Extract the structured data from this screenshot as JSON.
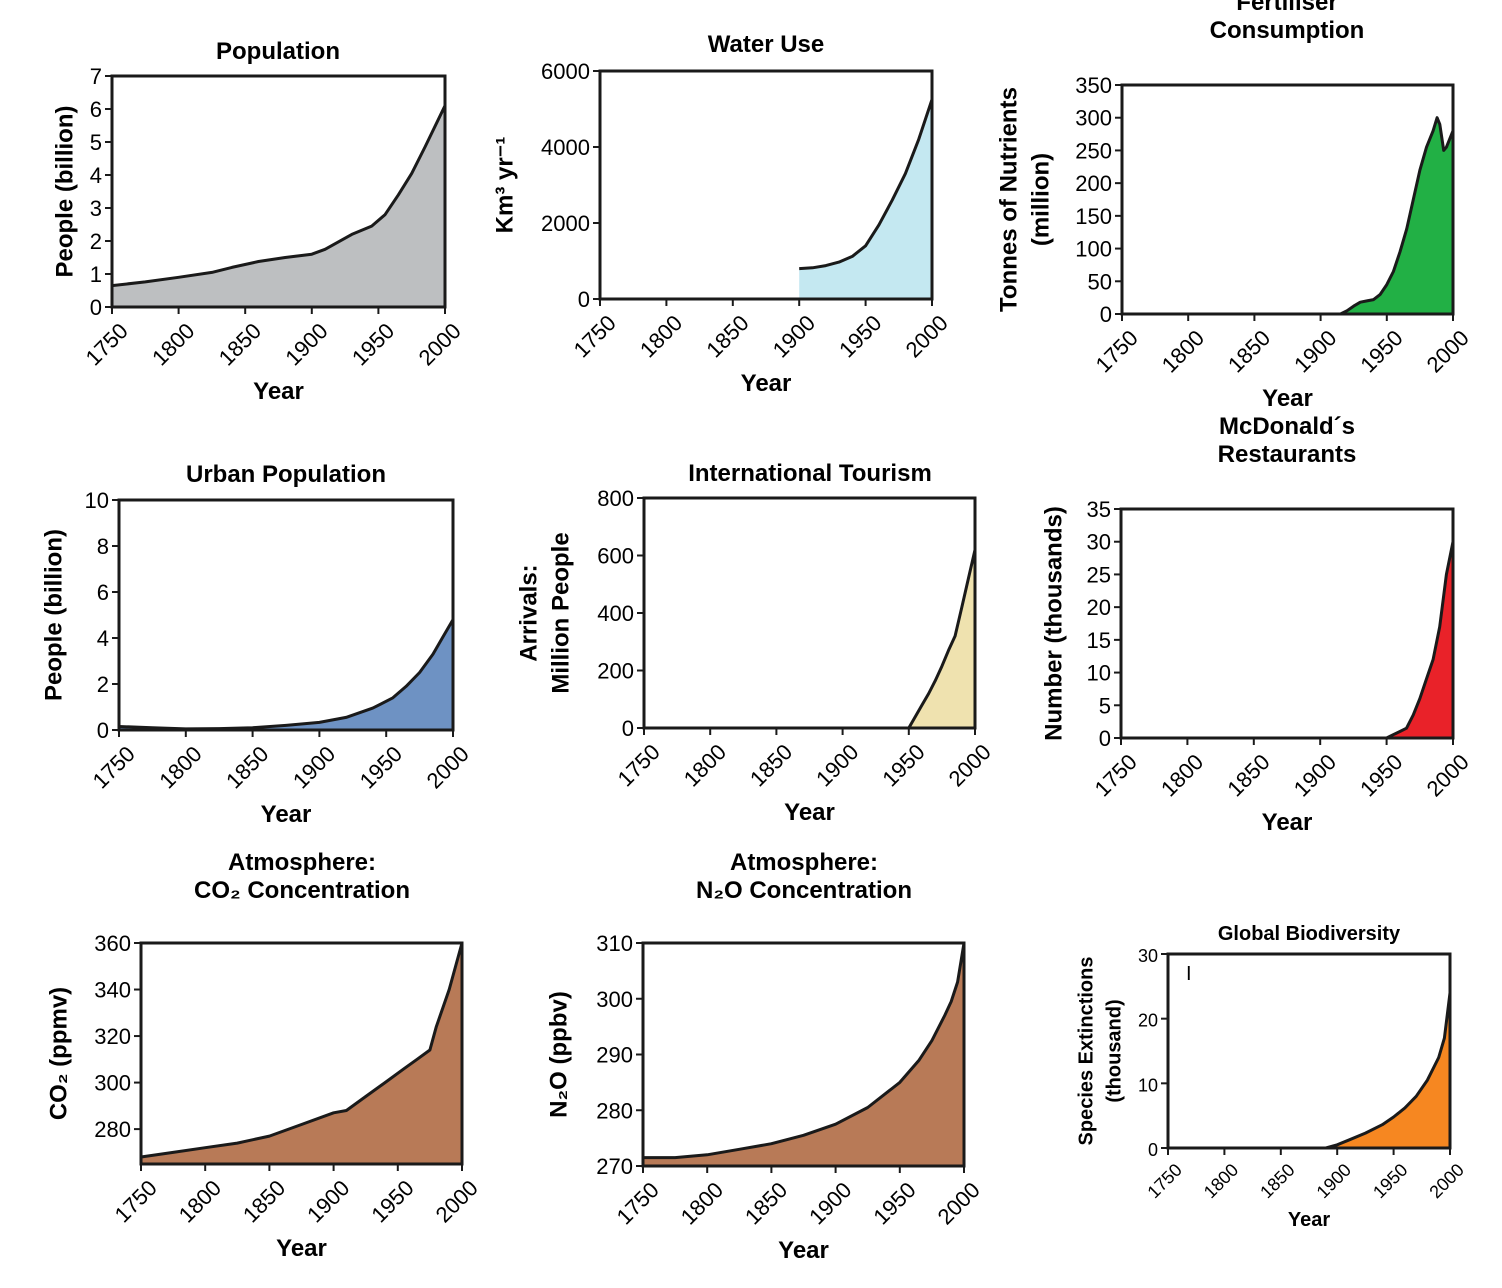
{
  "chart_data": [
    {
      "type": "area",
      "title": [
        "Population"
      ],
      "xlabel": "Year",
      "ylabel": [
        "People (billion)"
      ],
      "xlim": [
        1750,
        2000
      ],
      "ylim": [
        0,
        7
      ],
      "xticks": [
        1750,
        1800,
        1850,
        1900,
        1950,
        2000
      ],
      "yticks": [
        0,
        1,
        2,
        3,
        4,
        5,
        6,
        7
      ],
      "fill_color": "#bdbfc1",
      "series": [
        {
          "x": [
            1750,
            1775,
            1800,
            1825,
            1840,
            1860,
            1880,
            1900,
            1910,
            1930,
            1945,
            1955,
            1965,
            1975,
            1985,
            2000
          ],
          "y": [
            0.65,
            0.76,
            0.9,
            1.05,
            1.2,
            1.38,
            1.5,
            1.6,
            1.75,
            2.2,
            2.45,
            2.8,
            3.4,
            4.05,
            4.85,
            6.1
          ]
        }
      ]
    },
    {
      "type": "area",
      "title": [
        "Water Use"
      ],
      "xlabel": "Year",
      "ylabel": [
        "Km³ yr⁻¹"
      ],
      "xlim": [
        1750,
        2000
      ],
      "ylim": [
        0,
        6000
      ],
      "xticks": [
        1750,
        1800,
        1850,
        1900,
        1950,
        2000
      ],
      "yticks": [
        0,
        2000,
        4000,
        6000
      ],
      "fill_color": "#c4e8f1",
      "series": [
        {
          "x": [
            1900,
            1910,
            1920,
            1930,
            1940,
            1950,
            1960,
            1970,
            1980,
            1990,
            2000
          ],
          "y": [
            800,
            820,
            880,
            970,
            1120,
            1400,
            1950,
            2600,
            3300,
            4200,
            5250
          ]
        }
      ]
    },
    {
      "type": "area",
      "title": [
        "Fertiliser",
        "Consumption"
      ],
      "xlabel": "Year",
      "ylabel": [
        "Tonnes of Nutrients",
        "(million)"
      ],
      "xlim": [
        1750,
        2000
      ],
      "ylim": [
        0,
        350
      ],
      "xticks": [
        1750,
        1800,
        1850,
        1900,
        1950,
        2000
      ],
      "yticks": [
        0,
        50,
        100,
        150,
        200,
        250,
        300,
        350
      ],
      "fill_color": "#22b045",
      "series": [
        {
          "x": [
            1915,
            1920,
            1925,
            1930,
            1935,
            1940,
            1945,
            1950,
            1955,
            1960,
            1965,
            1970,
            1975,
            1980,
            1985,
            1988,
            1990,
            1993,
            1995,
            2000
          ],
          "y": [
            0,
            5,
            12,
            18,
            20,
            22,
            30,
            45,
            65,
            95,
            130,
            175,
            220,
            255,
            280,
            300,
            290,
            250,
            255,
            280
          ]
        }
      ]
    },
    {
      "type": "area",
      "title": [
        "Urban Population"
      ],
      "xlabel": "Year",
      "ylabel": [
        "People (billion)"
      ],
      "xlim": [
        1750,
        2000
      ],
      "ylim": [
        0,
        10
      ],
      "xticks": [
        1750,
        1800,
        1850,
        1900,
        1950,
        2000
      ],
      "yticks": [
        0,
        2,
        4,
        6,
        8,
        10
      ],
      "fill_color": "#6e92c3",
      "series": [
        {
          "x": [
            1750,
            1775,
            1800,
            1825,
            1850,
            1875,
            1900,
            1920,
            1940,
            1955,
            1965,
            1975,
            1985,
            1992,
            2000
          ],
          "y": [
            0.15,
            0.1,
            0.05,
            0.06,
            0.1,
            0.2,
            0.33,
            0.55,
            0.95,
            1.4,
            1.9,
            2.5,
            3.3,
            4.0,
            4.8
          ]
        }
      ]
    },
    {
      "type": "area",
      "title": [
        "International Tourism"
      ],
      "xlabel": "Year",
      "ylabel": [
        "Arrivals:",
        "Million People"
      ],
      "xlim": [
        1750,
        2000
      ],
      "ylim": [
        0,
        800
      ],
      "xticks": [
        1750,
        1800,
        1850,
        1900,
        1950,
        2000
      ],
      "yticks": [
        0,
        200,
        400,
        600,
        800
      ],
      "fill_color": "#efe2af",
      "series": [
        {
          "x": [
            1950,
            1955,
            1960,
            1965,
            1970,
            1975,
            1980,
            1985,
            1990,
            1995,
            2000
          ],
          "y": [
            0,
            40,
            80,
            120,
            165,
            215,
            270,
            320,
            420,
            520,
            620
          ]
        }
      ]
    },
    {
      "type": "area",
      "title": [
        "McDonald´s",
        "Restaurants"
      ],
      "xlabel": "Year",
      "ylabel": [
        "Number (thousands)"
      ],
      "xlim": [
        1750,
        2000
      ],
      "ylim": [
        0,
        35
      ],
      "xticks": [
        1750,
        1800,
        1850,
        1900,
        1950,
        2000
      ],
      "yticks": [
        0,
        5,
        10,
        15,
        20,
        25,
        30,
        35
      ],
      "fill_color": "#e92229",
      "series": [
        {
          "x": [
            1950,
            1955,
            1960,
            1965,
            1970,
            1975,
            1980,
            1985,
            1990,
            1995,
            2000
          ],
          "y": [
            0,
            0.5,
            1,
            1.5,
            3.5,
            6,
            9,
            12,
            17,
            25,
            30
          ]
        }
      ]
    },
    {
      "type": "area",
      "title": [
        "Atmosphere:",
        "CO₂ Concentration"
      ],
      "xlabel": "Year",
      "ylabel": [
        "CO₂ (ppmv)"
      ],
      "xlim": [
        1750,
        2000
      ],
      "ylim": [
        265,
        360
      ],
      "xticks": [
        1750,
        1800,
        1850,
        1900,
        1950,
        2000
      ],
      "yticks": [
        280,
        300,
        320,
        340,
        360
      ],
      "fill_color": "#b87a57",
      "series": [
        {
          "x": [
            1750,
            1775,
            1800,
            1825,
            1850,
            1875,
            1900,
            1910,
            1925,
            1940,
            1955,
            1965,
            1975,
            1980,
            1990,
            2000
          ],
          "y": [
            268,
            270,
            272,
            274,
            277,
            282,
            287,
            288,
            294,
            300,
            306,
            310,
            314,
            324,
            340,
            360
          ]
        }
      ]
    },
    {
      "type": "area",
      "title": [
        "Atmosphere:",
        "N₂O Concentration"
      ],
      "xlabel": "Year",
      "ylabel": [
        "N₂O (ppbv)"
      ],
      "xlim": [
        1750,
        2000
      ],
      "ylim": [
        270,
        310
      ],
      "xticks": [
        1750,
        1800,
        1850,
        1900,
        1950,
        2000
      ],
      "yticks": [
        270,
        280,
        290,
        300,
        310
      ],
      "fill_color": "#b87a57",
      "series": [
        {
          "x": [
            1750,
            1775,
            1800,
            1825,
            1850,
            1875,
            1900,
            1925,
            1950,
            1965,
            1975,
            1985,
            1990,
            1995,
            2000
          ],
          "y": [
            271.5,
            271.5,
            272,
            273,
            274,
            275.5,
            277.5,
            280.5,
            285,
            289,
            292.5,
            297,
            299.5,
            303,
            310
          ]
        }
      ]
    },
    {
      "type": "area",
      "title": [
        "Global Biodiversity"
      ],
      "xlabel": "Year",
      "ylabel": [
        "Species Extinctions",
        "(thousand)"
      ],
      "xlim": [
        1750,
        2000
      ],
      "ylim": [
        0,
        30
      ],
      "xticks": [
        1750,
        1800,
        1850,
        1900,
        1950,
        2000
      ],
      "yticks": [
        0,
        10,
        20,
        30
      ],
      "fill_color": "#f68721",
      "annotations": [
        "I"
      ],
      "series": [
        {
          "x": [
            1890,
            1900,
            1910,
            1925,
            1940,
            1950,
            1960,
            1970,
            1980,
            1990,
            1995,
            2000
          ],
          "y": [
            0,
            0.5,
            1.2,
            2.3,
            3.6,
            4.8,
            6.2,
            8,
            10.5,
            14,
            17,
            24
          ]
        }
      ]
    }
  ]
}
